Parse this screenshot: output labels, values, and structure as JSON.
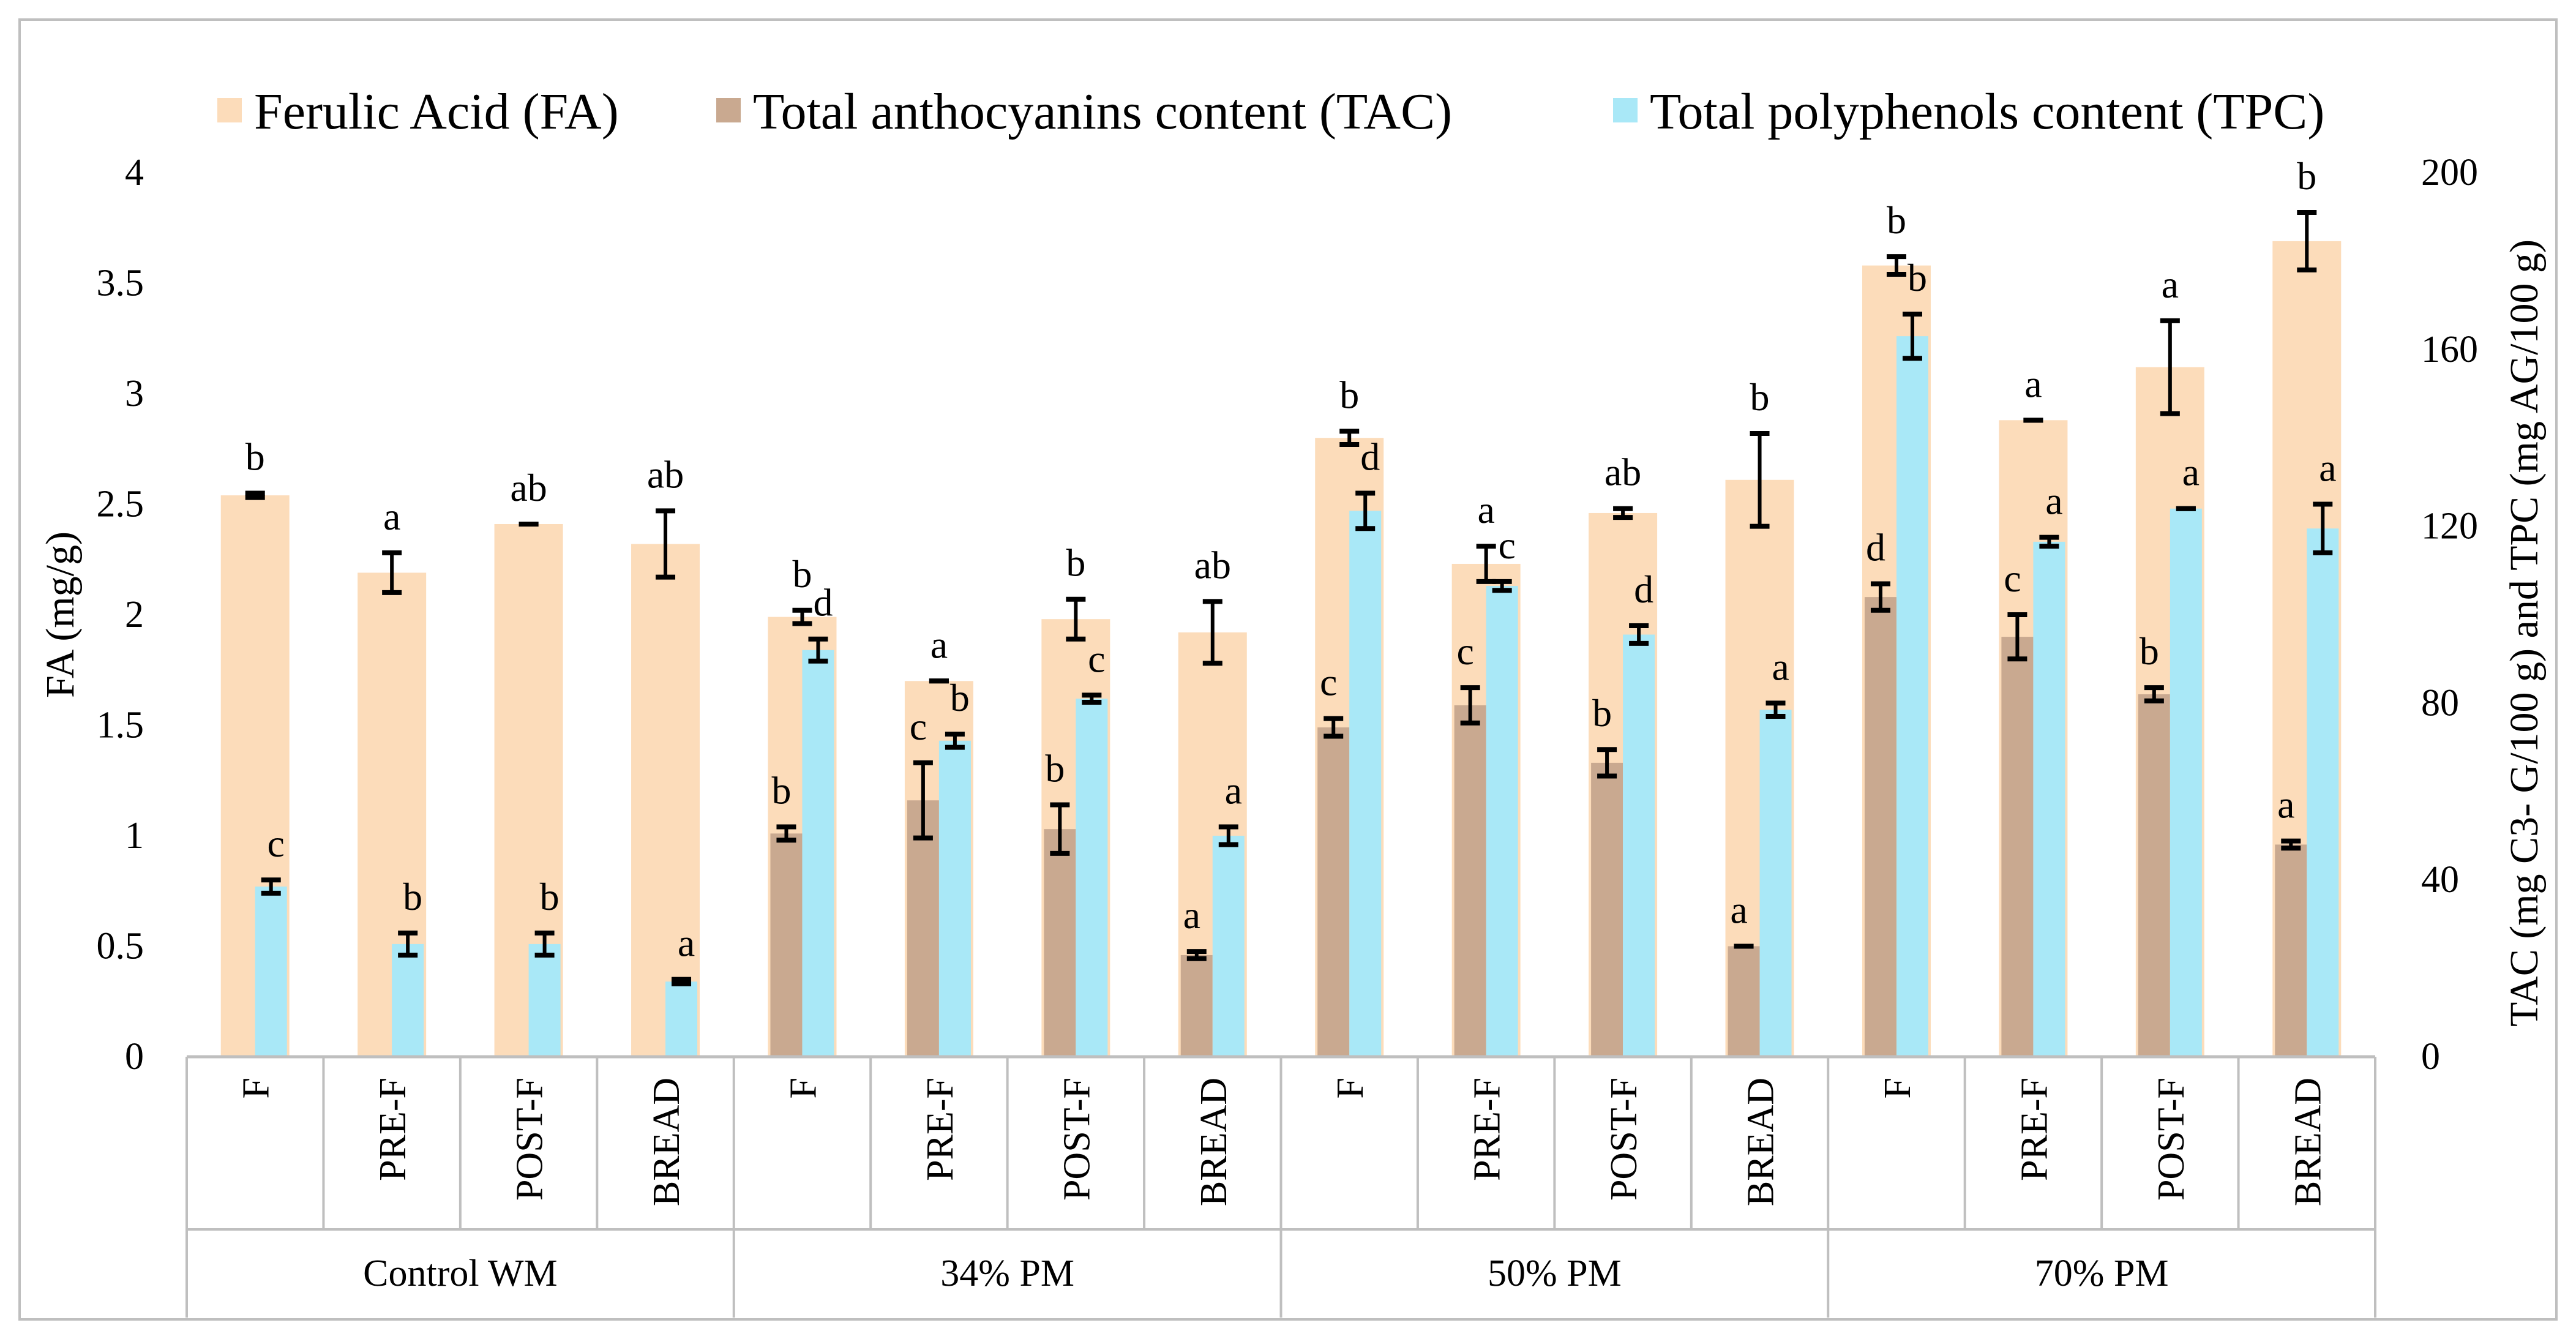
{
  "colors": {
    "fa": "#fcdcba",
    "tac": "#c9a990",
    "tpc": "#a9e8f7",
    "axis": "#bfbfbf",
    "errbar": "#000000"
  },
  "legend": [
    "Ferulic Acid (FA)",
    "Total anthocyanins content (TAC)",
    "Total polyphenols content (TPC)"
  ],
  "chart_data": {
    "type": "bar",
    "legend_position": "top",
    "grid": false,
    "ylabel_left": "FA (mg/g)",
    "ylabel_right": "TAC (mg C3- G/100 g) and TPC (mg AG/100 g)",
    "ylim_left": [
      0,
      4
    ],
    "ylim_right": [
      0,
      200
    ],
    "yticks_left": [
      "0",
      "0.5",
      "1",
      "1.5",
      "2",
      "2.5",
      "3",
      "3.5",
      "4"
    ],
    "yticks_right": [
      "0",
      "40",
      "80",
      "120",
      "160",
      "200"
    ],
    "groups": [
      {
        "name": "Control WM",
        "categories": [
          "F",
          "PRE-F",
          "POST-F",
          "BREAD"
        ]
      },
      {
        "name": "34% PM",
        "categories": [
          "F",
          "PRE-F",
          "POST-F",
          "BREAD"
        ]
      },
      {
        "name": "50% PM",
        "categories": [
          "F",
          "PRE-F",
          "POST-F",
          "BREAD"
        ]
      },
      {
        "name": "70% PM",
        "categories": [
          "F",
          "PRE-F",
          "POST-F",
          "BREAD"
        ]
      }
    ],
    "series": [
      {
        "name": "Ferulic Acid (FA)",
        "axis": "left",
        "values": [
          2.54,
          2.19,
          2.41,
          2.32,
          1.99,
          1.7,
          1.98,
          1.92,
          2.8,
          2.23,
          2.46,
          2.61,
          3.58,
          2.88,
          3.12,
          3.69
        ],
        "errors": [
          0.01,
          0.09,
          0.0,
          0.15,
          0.03,
          0.0,
          0.09,
          0.14,
          0.03,
          0.08,
          0.02,
          0.21,
          0.04,
          0.0,
          0.21,
          0.13
        ],
        "labels": [
          "b",
          "a",
          "ab",
          "ab",
          "b",
          "a",
          "b",
          "ab",
          "b",
          "a",
          "ab",
          "b",
          "b",
          "a",
          "a",
          "b"
        ]
      },
      {
        "name": "Total anthocyanins content (TAC)",
        "axis": "right",
        "values": [
          null,
          null,
          null,
          null,
          50.5,
          58,
          51.5,
          23,
          74.5,
          79.5,
          66.5,
          25,
          104,
          95,
          82,
          48
        ],
        "errors": [
          null,
          null,
          null,
          null,
          1.5,
          8.5,
          5.5,
          0.8,
          2,
          4,
          3,
          0,
          3,
          5,
          1.5,
          0.8
        ],
        "labels": [
          "",
          "",
          "",
          "",
          "b",
          "c",
          "b",
          "a",
          "c",
          "c",
          "b",
          "a",
          "d",
          "c",
          "b",
          "a"
        ]
      },
      {
        "name": "Total polyphenols content (TPC)",
        "axis": "right",
        "values": [
          38.5,
          25.5,
          25.5,
          17,
          92,
          71.5,
          81,
          50,
          123.5,
          106.5,
          95.5,
          78.5,
          163,
          116.5,
          124,
          119.5
        ],
        "errors": [
          1.5,
          2.5,
          2.5,
          0.5,
          2.5,
          1.5,
          0.8,
          2,
          4,
          1,
          2,
          1.5,
          5,
          1,
          0,
          5.5
        ],
        "labels": [
          "c",
          "b",
          "b",
          "a",
          "d",
          "b",
          "c",
          "a",
          "d",
          "c",
          "d",
          "a",
          "b",
          "a",
          "a",
          "a"
        ]
      }
    ]
  }
}
